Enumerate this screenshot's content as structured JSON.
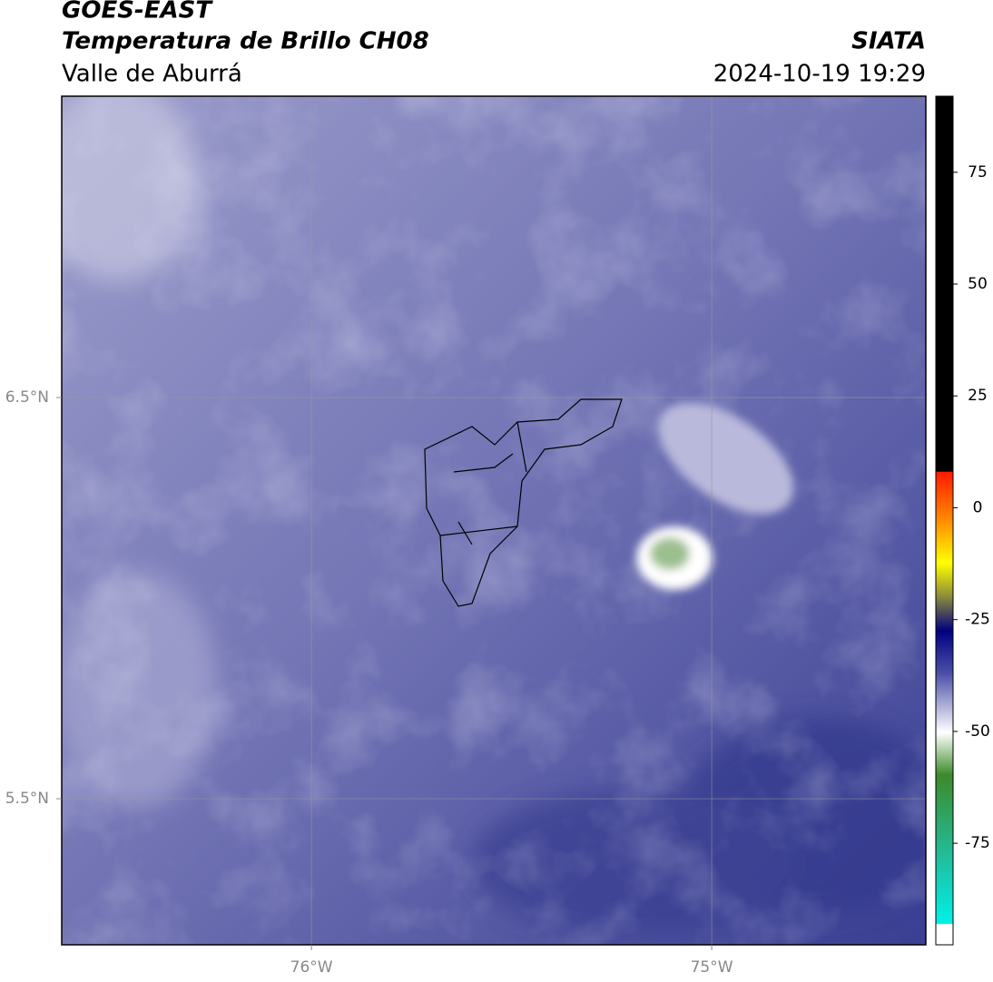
{
  "header": {
    "title": "GOES-EAST",
    "subtitle": "Temperatura de Brillo CH08",
    "region": "Valle de Aburrá",
    "source": "SIATA",
    "timestamp": "2024-10-19 19:29"
  },
  "map": {
    "xlim": [
      -76.624,
      -74.465
    ],
    "ylim": [
      5.136,
      7.251
    ],
    "xticks": [
      {
        "value": -76,
        "label": "76°W"
      },
      {
        "value": -75,
        "label": "75°W"
      }
    ],
    "yticks": [
      {
        "value": 6.5,
        "label": "6.5°N"
      },
      {
        "value": 5.5,
        "label": "5.5°N"
      }
    ],
    "grid": true
  },
  "colorbar": {
    "lim": [
      -97.7,
      92
    ],
    "ticks": [
      75,
      50,
      25,
      0,
      -25,
      -50,
      -75
    ]
  }
}
